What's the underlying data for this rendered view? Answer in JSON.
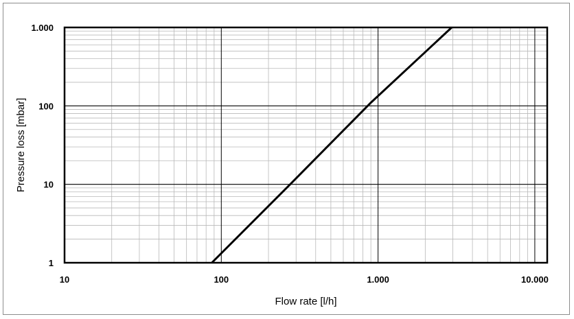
{
  "chart_data": {
    "type": "line",
    "title": "",
    "xlabel": "Flow rate [l/h]",
    "ylabel": "Pressure loss [mbar]",
    "x_scale": "log",
    "y_scale": "log",
    "xlim": [
      10,
      12000
    ],
    "ylim": [
      1,
      1000
    ],
    "grid": true,
    "x_ticks": [
      {
        "value": 10,
        "label": "10"
      },
      {
        "value": 100,
        "label": "100"
      },
      {
        "value": 1000,
        "label": "1.000"
      },
      {
        "value": 10000,
        "label": "10.000"
      }
    ],
    "y_ticks": [
      {
        "value": 1,
        "label": "1"
      },
      {
        "value": 10,
        "label": "10"
      },
      {
        "value": 100,
        "label": "100"
      },
      {
        "value": 1000,
        "label": "1.000"
      }
    ],
    "series": [
      {
        "x": [
          87,
          275,
          900,
          2950
        ],
        "y": [
          1,
          10,
          110,
          1000
        ]
      }
    ]
  }
}
